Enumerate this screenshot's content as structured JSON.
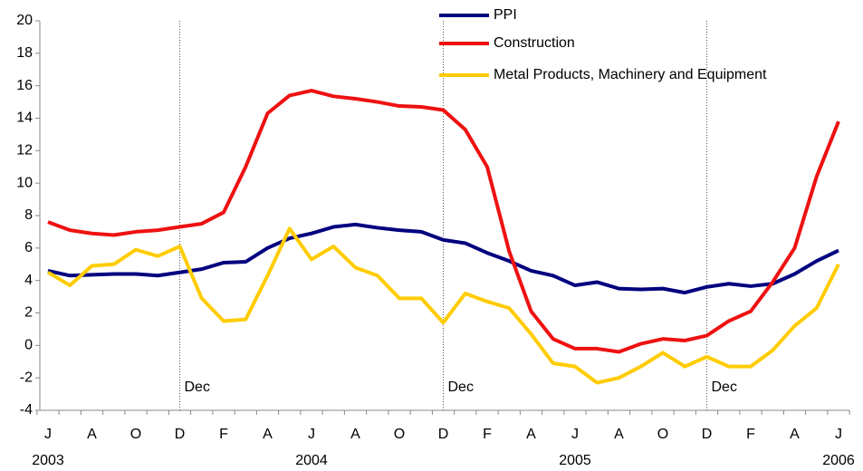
{
  "chart_data": {
    "type": "line",
    "categories": [
      "J",
      null,
      "A",
      null,
      "O",
      null,
      "D",
      null,
      "F",
      null,
      "A",
      null,
      "J",
      null,
      "A",
      null,
      "O",
      null,
      "D",
      null,
      "F",
      null,
      "A",
      null,
      "J",
      null,
      "A",
      null,
      "O",
      null,
      "D",
      null,
      "F",
      null,
      "A",
      null,
      "J"
    ],
    "years": [
      "2003",
      null,
      null,
      null,
      null,
      null,
      null,
      null,
      null,
      null,
      null,
      null,
      "2004",
      null,
      null,
      null,
      null,
      null,
      null,
      null,
      null,
      null,
      null,
      null,
      "2005",
      null,
      null,
      null,
      null,
      null,
      null,
      null,
      null,
      null,
      null,
      null,
      "2006"
    ],
    "annotations": [
      null,
      null,
      null,
      null,
      null,
      null,
      "Dec",
      null,
      null,
      null,
      null,
      null,
      null,
      null,
      null,
      null,
      null,
      null,
      "Dec",
      null,
      null,
      null,
      null,
      null,
      null,
      null,
      null,
      null,
      null,
      null,
      "Dec",
      null,
      null,
      null,
      null,
      null,
      null
    ],
    "series": [
      {
        "name": "PPI",
        "color": "#00007f",
        "values": [
          4.6,
          4.3,
          4.35,
          4.4,
          4.4,
          4.3,
          4.5,
          4.7,
          5.1,
          5.15,
          6.0,
          6.6,
          6.9,
          7.3,
          7.45,
          7.25,
          7.1,
          7.0,
          6.5,
          6.3,
          5.7,
          5.2,
          4.6,
          4.3,
          3.7,
          3.9,
          3.5,
          3.45,
          3.5,
          3.25,
          3.6,
          3.8,
          3.65,
          3.8,
          4.4,
          5.2,
          5.85
        ]
      },
      {
        "name": "Construction",
        "color": "#ee1111",
        "values": [
          7.6,
          7.1,
          6.9,
          6.8,
          7.0,
          7.1,
          7.3,
          7.5,
          8.2,
          11.0,
          14.3,
          15.4,
          15.7,
          15.35,
          15.2,
          15.0,
          14.75,
          14.7,
          14.5,
          13.3,
          11.0,
          5.8,
          2.1,
          0.4,
          -0.2,
          -0.2,
          -0.4,
          0.1,
          0.4,
          0.3,
          0.6,
          1.5,
          2.1,
          3.9,
          6.0,
          10.4,
          13.8
        ]
      },
      {
        "name": "Metal Products, Machinery and Equipment",
        "color": "#ffcc00",
        "values": [
          4.5,
          3.7,
          4.9,
          5.0,
          5.9,
          5.5,
          6.1,
          2.9,
          1.5,
          1.6,
          4.3,
          7.2,
          5.3,
          6.1,
          4.8,
          4.3,
          2.9,
          2.9,
          1.4,
          3.2,
          2.7,
          2.3,
          0.7,
          -1.1,
          -1.3,
          -2.3,
          -2.0,
          -1.3,
          -0.45,
          -1.3,
          -0.7,
          -1.3,
          -1.3,
          -0.3,
          1.2,
          2.3,
          5.0
        ]
      }
    ],
    "ylim": [
      -4,
      20
    ],
    "yticks": [
      -4,
      -2,
      0,
      2,
      4,
      6,
      8,
      10,
      12,
      14,
      16,
      18,
      20
    ],
    "legend": "top-right"
  }
}
